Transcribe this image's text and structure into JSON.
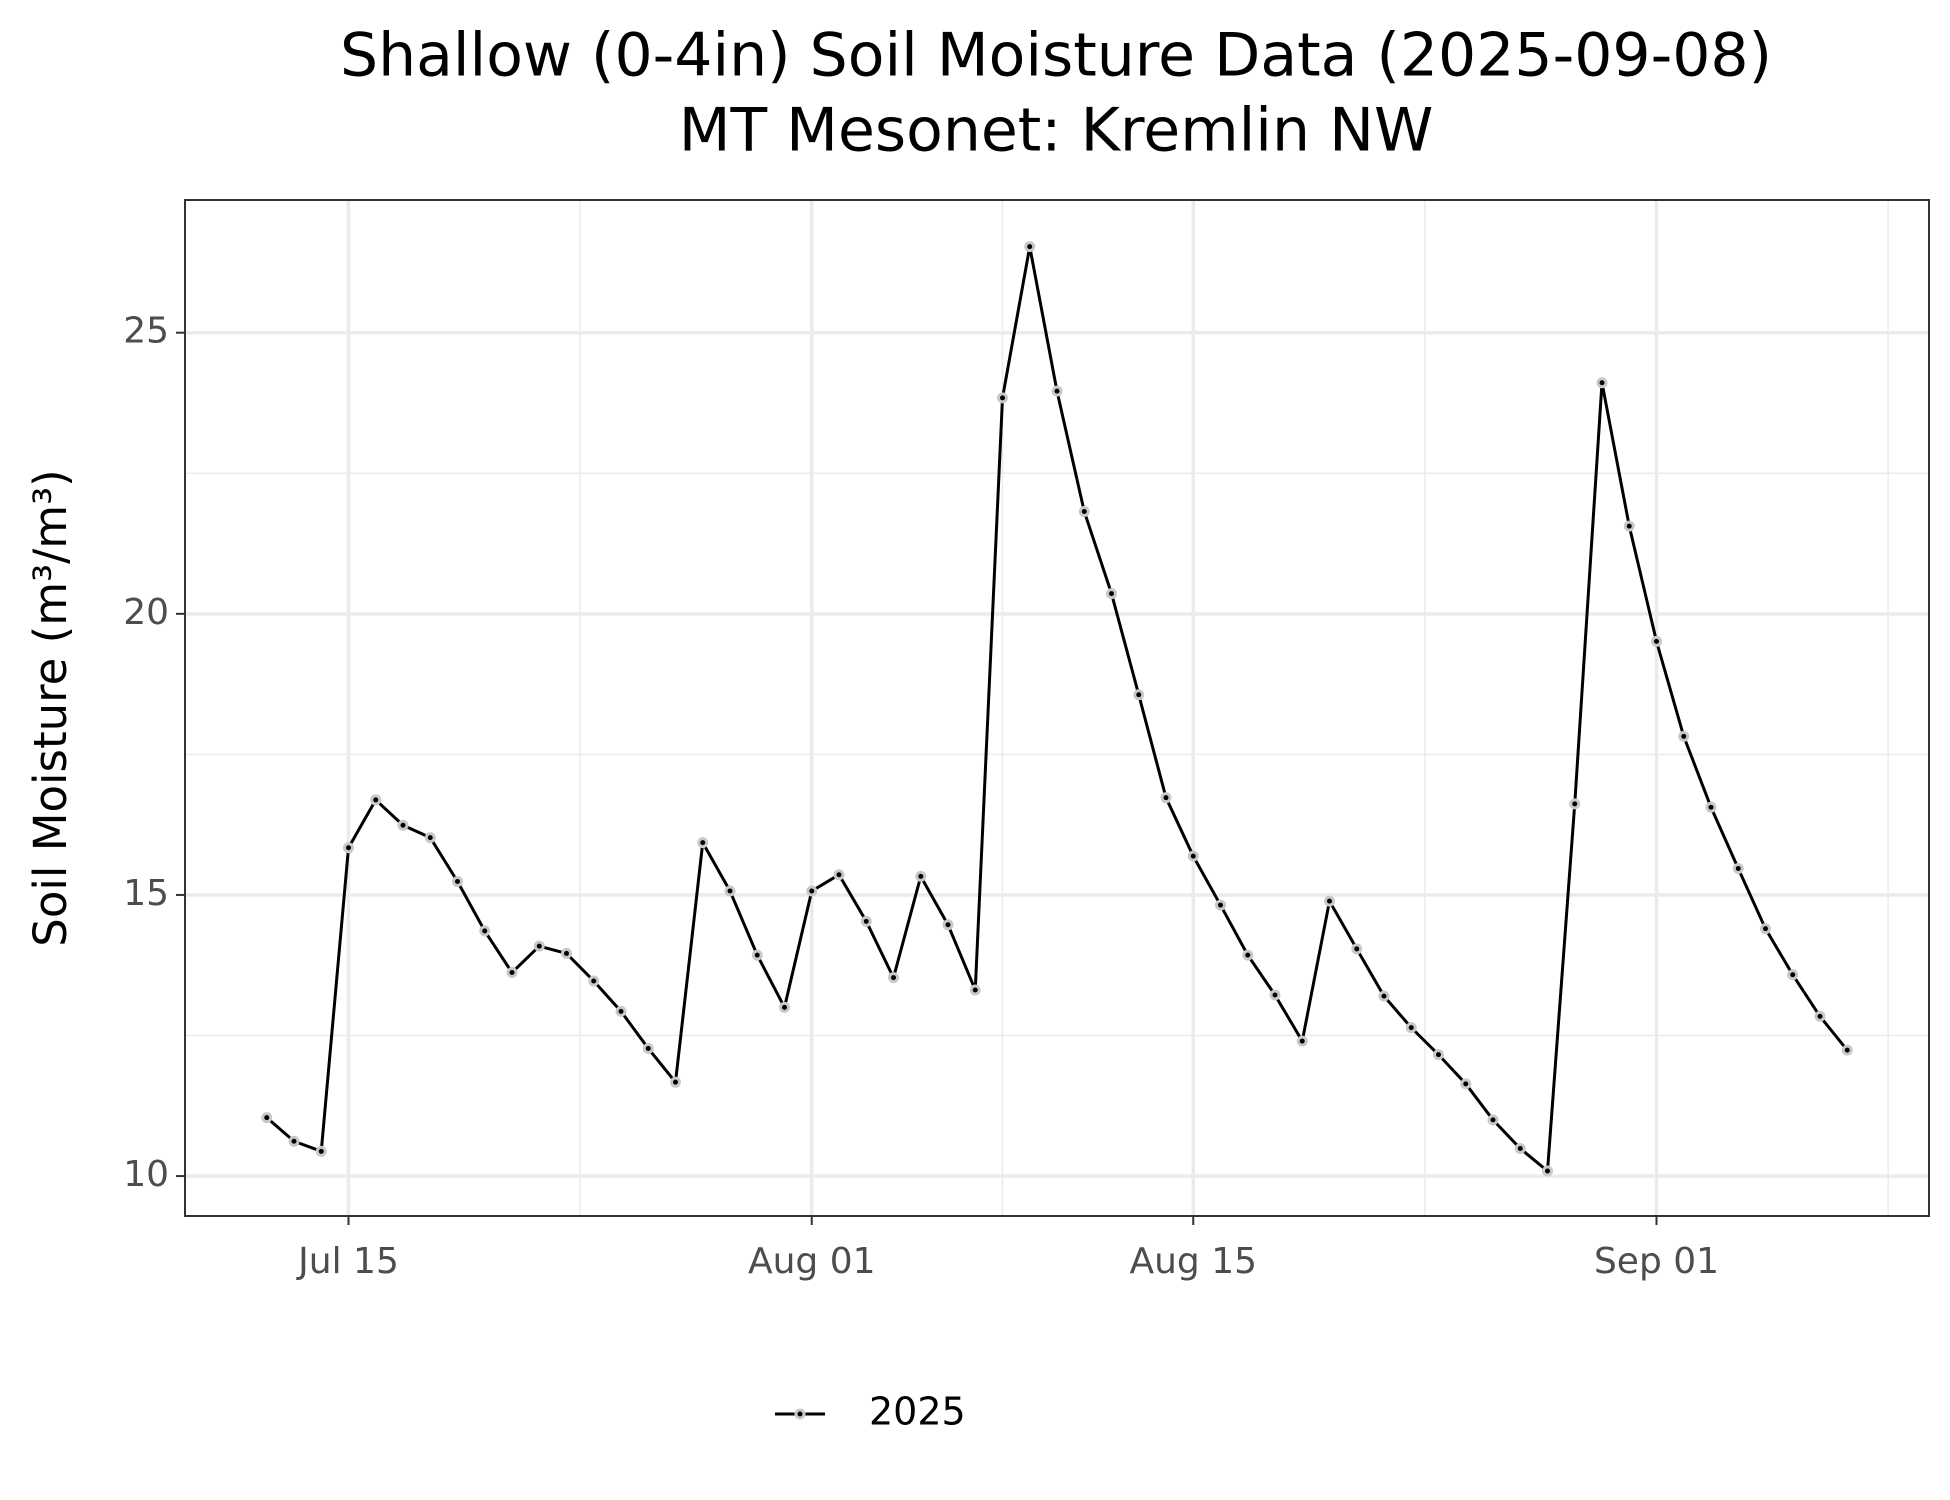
{
  "chart_data": {
    "type": "line",
    "title": "Shallow (0-4in) Soil Moisture Data (2025-09-08)",
    "subtitle": "MT Mesonet: Kremlin NW",
    "y_label": "Soil Moisture (m³/m³)",
    "x": [
      "07-12",
      "07-13",
      "07-14",
      "07-15",
      "07-16",
      "07-17",
      "07-18",
      "07-19",
      "07-20",
      "07-21",
      "07-22",
      "07-23",
      "07-24",
      "07-25",
      "07-26",
      "07-27",
      "07-28",
      "07-29",
      "07-30",
      "07-31",
      "08-01",
      "08-02",
      "08-03",
      "08-04",
      "08-05",
      "08-06",
      "08-07",
      "08-08",
      "08-09",
      "08-10",
      "08-11",
      "08-12",
      "08-13",
      "08-14",
      "08-15",
      "08-16",
      "08-17",
      "08-18",
      "08-19",
      "08-20",
      "08-21",
      "08-22",
      "08-23",
      "08-24",
      "08-25",
      "08-26",
      "08-27",
      "08-28",
      "08-29",
      "08-30",
      "08-31",
      "09-01",
      "09-02",
      "09-03",
      "09-04",
      "09-05",
      "09-06",
      "09-07",
      "09-08"
    ],
    "series": [
      {
        "name": "2025",
        "color": "#000000",
        "values": [
          11.04,
          10.62,
          10.44,
          15.84,
          16.69,
          16.24,
          16.02,
          15.24,
          14.36,
          13.62,
          14.09,
          13.96,
          13.47,
          12.93,
          12.27,
          11.67,
          15.93,
          15.07,
          13.93,
          13.0,
          15.07,
          15.36,
          14.53,
          13.53,
          15.33,
          14.47,
          13.31,
          23.84,
          26.53,
          23.96,
          21.82,
          20.36,
          18.56,
          16.73,
          15.69,
          14.82,
          13.93,
          13.22,
          12.4,
          14.89,
          14.04,
          13.2,
          12.64,
          12.16,
          11.64,
          11.0,
          10.49,
          10.09,
          16.62,
          24.11,
          21.56,
          19.51,
          17.82,
          16.56,
          15.47,
          14.4,
          13.58,
          12.84,
          12.24
        ]
      }
    ],
    "xlim": [
      "07-09",
      "09-11"
    ],
    "xticks": [
      {
        "value": "07-15",
        "label": "Jul 15"
      },
      {
        "value": "08-01",
        "label": "Aug 01"
      },
      {
        "value": "08-15",
        "label": "Aug 15"
      },
      {
        "value": "09-01",
        "label": "Sep 01"
      }
    ],
    "ylim": [
      9.29,
      27.36
    ],
    "yticks": [
      10,
      15,
      20,
      25
    ],
    "grid": true,
    "legend": "bottom"
  }
}
